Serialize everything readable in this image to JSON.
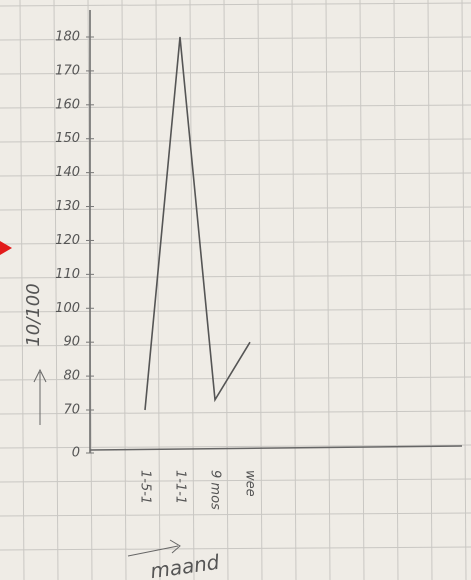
{
  "chart_data": {
    "type": "line",
    "y_label": "10/100",
    "x_label": "maand",
    "categories": [
      "1-5-1",
      "1-1-1",
      "9 mos",
      "wee"
    ],
    "values": [
      70,
      180,
      73,
      90
    ],
    "color": "#555555",
    "ylim": [
      0,
      180
    ],
    "yticks": [
      0,
      70,
      80,
      90,
      100,
      110,
      120,
      130,
      140,
      150,
      160,
      170,
      180
    ],
    "grid": true
  }
}
